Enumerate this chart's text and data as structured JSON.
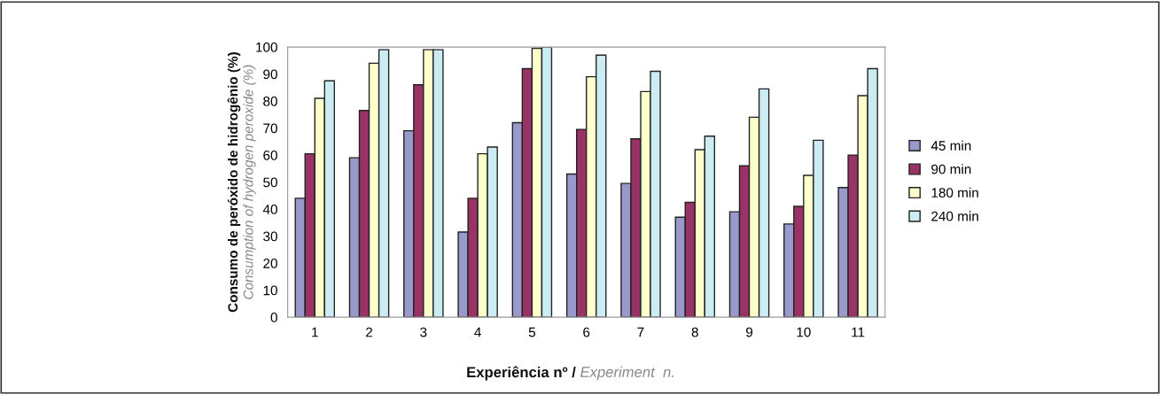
{
  "chart_data": {
    "type": "bar",
    "ylabel": [
      "Consumo de peróxido de hidrogênio (%)",
      "Consumption of hydrogen peroxide (%)"
    ],
    "xlabel": [
      "Experiência nº / ",
      "Experiment  n."
    ],
    "categories": [
      "1",
      "2",
      "3",
      "4",
      "5",
      "6",
      "7",
      "8",
      "9",
      "10",
      "11"
    ],
    "series": [
      {
        "name": "45 min",
        "color": "#9999cc",
        "values": [
          44,
          59,
          69,
          31.5,
          72,
          53,
          49.5,
          37,
          39,
          34.5,
          48
        ]
      },
      {
        "name": "90 min",
        "color": "#993366",
        "values": [
          60.5,
          76.5,
          86,
          44,
          92,
          69.5,
          66,
          42.5,
          56,
          41,
          60
        ]
      },
      {
        "name": "180 min",
        "color": "#ffffcc",
        "values": [
          81,
          94,
          99,
          60.5,
          99.5,
          89,
          83.5,
          62,
          74,
          52.5,
          82
        ]
      },
      {
        "name": "240 min",
        "color": "#ccecf4",
        "values": [
          87.5,
          99,
          99,
          63,
          100,
          97,
          91,
          67,
          84.5,
          65.5,
          92
        ]
      }
    ],
    "ylim": [
      0,
      100
    ],
    "yticks": [
      0,
      10,
      20,
      30,
      40,
      50,
      60,
      70,
      80,
      90,
      100
    ],
    "grid": false,
    "legend": "right"
  }
}
